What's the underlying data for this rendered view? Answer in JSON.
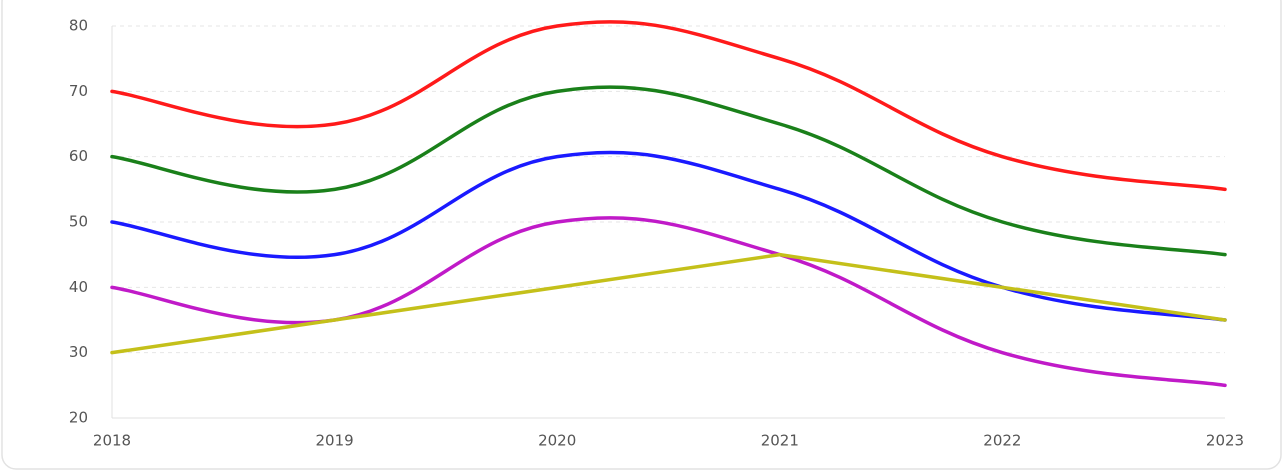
{
  "chart_data": {
    "type": "line",
    "categories": [
      "2018",
      "2019",
      "2020",
      "2021",
      "2022",
      "2023"
    ],
    "series": [
      {
        "color": "#ff1a1a",
        "smooth": true,
        "values": [
          70,
          65,
          80,
          75,
          60,
          55
        ]
      },
      {
        "color": "#1a801a",
        "smooth": true,
        "values": [
          60,
          55,
          70,
          65,
          50,
          45
        ]
      },
      {
        "color": "#1a1aff",
        "smooth": true,
        "values": [
          50,
          45,
          60,
          55,
          40,
          35
        ]
      },
      {
        "color": "#c01ac8",
        "smooth": true,
        "values": [
          40,
          35,
          50,
          45,
          30,
          25
        ]
      },
      {
        "color": "#c4c01a",
        "smooth": false,
        "values": [
          30,
          35,
          40,
          45,
          40,
          35
        ]
      }
    ],
    "ylim": [
      20,
      80
    ],
    "yticks": [
      20,
      30,
      40,
      50,
      60,
      70,
      80
    ],
    "grid": true
  }
}
